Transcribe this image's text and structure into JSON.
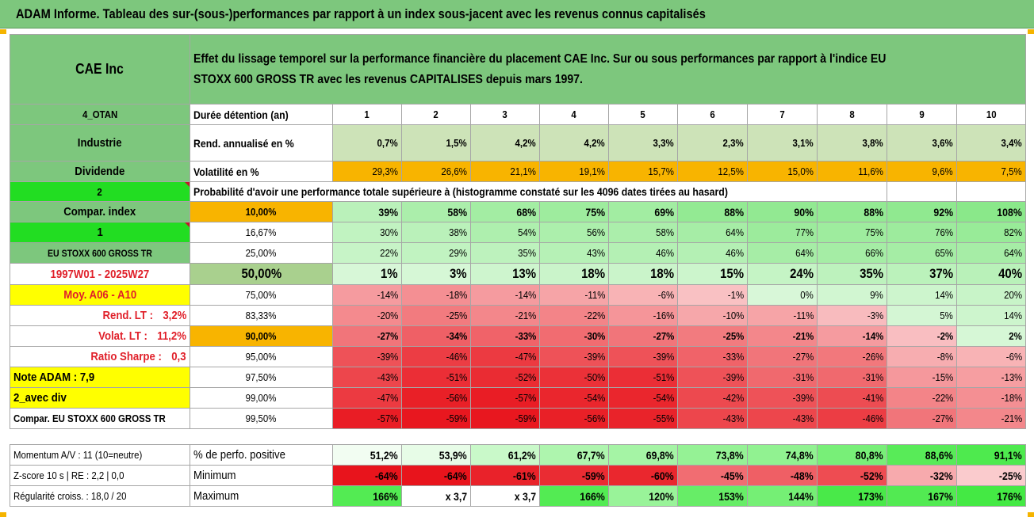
{
  "title": "ADAM Informe. Tableau des sur-(sous-)performances par rapport à un index sous-jacent avec les revenus connus capitalisés",
  "colors": {
    "green_header": "#7dc77d",
    "orange": "#f8b400",
    "yellow": "#ffff00",
    "bright_green": "#22dd22",
    "light_green": "#a9d08e"
  },
  "header": {
    "company": "CAE Inc",
    "description_line1": "Effet du lissage temporel sur la performance financière du placement CAE Inc. Sur ou sous performances par rapport à l'indice EU",
    "description_line2": "STOXX 600 GROSS TR avec les revenus CAPITALISES depuis mars 1997."
  },
  "side_labels": {
    "r1": "4_OTAN",
    "r2": "Industrie",
    "r3": "Dividende",
    "r4": "2",
    "r5": "Compar. index",
    "r6": "1",
    "r7": "EU STOXX 600 GROSS TR",
    "r8": "1997W01 - 2025W27",
    "r9": "Moy. A06 - A10",
    "r10": "Rend. LT :",
    "r10v": "3,2%",
    "r11": "Volat. LT :",
    "r11v": "11,2%",
    "r12": "Ratio Sharpe :",
    "r12v": "0,3",
    "r13": "Note ADAM : 7,9",
    "r14": "2_avec div",
    "r15": "Compar. EU STOXX 600 GROSS TR"
  },
  "durations": {
    "label": "Durée détention (an)",
    "years": [
      "1",
      "2",
      "3",
      "4",
      "5",
      "6",
      "7",
      "8",
      "9",
      "10"
    ]
  },
  "rend": {
    "label": "Rend. annualisé en %",
    "values": [
      "0,7%",
      "1,5%",
      "4,2%",
      "4,2%",
      "3,3%",
      "2,3%",
      "3,1%",
      "3,8%",
      "3,6%",
      "3,4%"
    ]
  },
  "volat": {
    "label": "Volatilité en %",
    "values": [
      "29,3%",
      "26,6%",
      "21,1%",
      "19,1%",
      "15,7%",
      "12,5%",
      "15,0%",
      "11,6%",
      "9,6%",
      "7,5%"
    ]
  },
  "proba_title": "Probabilité d'avoir une performance totale supérieure à (histogramme constaté sur les 4096 dates tirées au hasard)",
  "prob_rows": [
    {
      "thr": "10,00%",
      "values": [
        "39%",
        "58%",
        "68%",
        "75%",
        "69%",
        "88%",
        "90%",
        "88%",
        "92%",
        "108%"
      ]
    },
    {
      "thr": "16,67%",
      "values": [
        "30%",
        "38%",
        "54%",
        "56%",
        "58%",
        "64%",
        "77%",
        "75%",
        "76%",
        "82%"
      ]
    },
    {
      "thr": "25,00%",
      "values": [
        "22%",
        "29%",
        "35%",
        "43%",
        "46%",
        "46%",
        "64%",
        "66%",
        "65%",
        "64%"
      ]
    },
    {
      "thr": "50,00%",
      "values": [
        "1%",
        "3%",
        "13%",
        "18%",
        "18%",
        "15%",
        "24%",
        "35%",
        "37%",
        "40%"
      ]
    },
    {
      "thr": "75,00%",
      "values": [
        "-14%",
        "-18%",
        "-14%",
        "-11%",
        "-6%",
        "-1%",
        "0%",
        "9%",
        "14%",
        "20%"
      ]
    },
    {
      "thr": "83,33%",
      "values": [
        "-20%",
        "-25%",
        "-21%",
        "-22%",
        "-16%",
        "-10%",
        "-11%",
        "-3%",
        "5%",
        "14%"
      ]
    },
    {
      "thr": "90,00%",
      "values": [
        "-27%",
        "-34%",
        "-33%",
        "-30%",
        "-27%",
        "-25%",
        "-21%",
        "-14%",
        "-2%",
        "2%"
      ]
    },
    {
      "thr": "95,00%",
      "values": [
        "-39%",
        "-46%",
        "-47%",
        "-39%",
        "-39%",
        "-33%",
        "-27%",
        "-26%",
        "-8%",
        "-6%"
      ]
    },
    {
      "thr": "97,50%",
      "values": [
        "-43%",
        "-51%",
        "-52%",
        "-50%",
        "-51%",
        "-39%",
        "-31%",
        "-31%",
        "-15%",
        "-13%"
      ]
    },
    {
      "thr": "99,00%",
      "values": [
        "-47%",
        "-56%",
        "-57%",
        "-54%",
        "-54%",
        "-42%",
        "-39%",
        "-41%",
        "-22%",
        "-18%"
      ]
    },
    {
      "thr": "99,50%",
      "values": [
        "-57%",
        "-59%",
        "-59%",
        "-56%",
        "-55%",
        "-43%",
        "-43%",
        "-46%",
        "-27%",
        "-21%"
      ]
    }
  ],
  "bottom": {
    "momentum": "Momentum A/V : 11 (10=neutre)",
    "zscore": "Z-score 10 s | RE : 2,2 | 0,0",
    "regularite": "Régularité croiss. : 18,0 / 20",
    "pos": {
      "label": "% de perfo. positive",
      "values": [
        "51,2%",
        "53,9%",
        "61,2%",
        "67,7%",
        "69,8%",
        "73,8%",
        "74,8%",
        "80,8%",
        "88,6%",
        "91,1%"
      ]
    },
    "min": {
      "label": "Minimum",
      "values": [
        "-64%",
        "-64%",
        "-61%",
        "-59%",
        "-60%",
        "-45%",
        "-48%",
        "-52%",
        "-32%",
        "-25%"
      ]
    },
    "max": {
      "label": "Maximum",
      "values": [
        "166%",
        "x 3,7",
        "x 3,7",
        "166%",
        "120%",
        "153%",
        "144%",
        "173%",
        "167%",
        "176%"
      ]
    }
  }
}
